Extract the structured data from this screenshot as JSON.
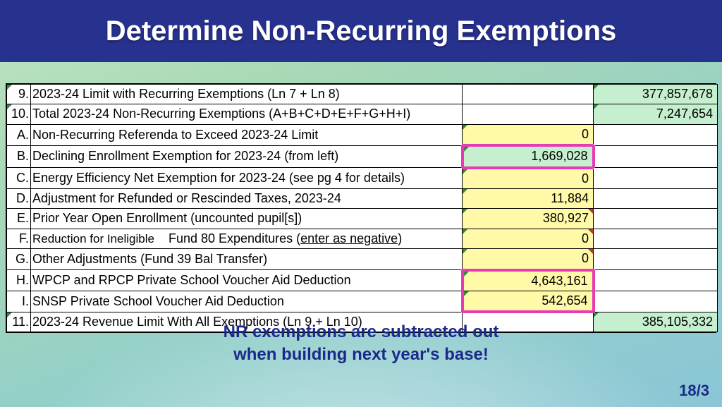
{
  "title": "Determine Non-Recurring Exemptions",
  "rows": {
    "r9": {
      "num": "9.",
      "desc": "2023-24 Limit with Recurring Exemptions  (Ln 7 + Ln 8)",
      "v2": "377,857,678"
    },
    "r10": {
      "num": "10.",
      "desc": "Total 2023-24 Non-Recurring Exemptions (A+B+C+D+E+F+G+H+I)",
      "v2": "7,247,654"
    },
    "rA": {
      "num": "A.",
      "desc": "Non-Recurring Referenda to Exceed 2023-24 Limit",
      "v1": "0"
    },
    "rB": {
      "num": "B.",
      "desc": "Declining Enrollment Exemption for 2023-24 (from left)",
      "v1": "1,669,028"
    },
    "rC": {
      "num": "C.",
      "desc": "Energy Efficiency Net Exemption for 2023-24 (see pg 4 for details)",
      "v1": "0"
    },
    "rD": {
      "num": "D.",
      "desc": "Adjustment for Refunded or Rescinded Taxes, 2023-24",
      "v1": "11,884"
    },
    "rE": {
      "num": "E.",
      "desc": "Prior Year Open Enrollment (uncounted pupil[s])",
      "v1": "380,927"
    },
    "rF": {
      "num": "F.",
      "d1": "Reduction for Ineligible",
      "d2": "Fund 80 Expenditures (",
      "d3": "enter as negative",
      "d4": ")",
      "v1": "0"
    },
    "rG": {
      "num": "G.",
      "desc": "Other Adjustments (Fund 39 Bal Transfer)",
      "v1": "0"
    },
    "rH": {
      "num": "H.",
      "desc": "WPCP and RPCP Private School Voucher Aid Deduction",
      "v1": "4,643,161"
    },
    "rI": {
      "num": "I.",
      "desc": "SNSP Private School Voucher Aid Deduction",
      "v1": "542,654"
    },
    "r11": {
      "num": "11.",
      "desc": "2023-24 Revenue Limit With All Exemptions  (Ln 9 + Ln 10)",
      "v2": "385,105,332"
    }
  },
  "caption_l1": "NR exemptions are subtracted out",
  "caption_l2": "when building next year's base!",
  "page": "18/3",
  "colors": {
    "title_bg": "#27328f",
    "yellow": "#fff9a8",
    "green": "#c5efce",
    "pink": "#e63bb4",
    "caption": "#1b2a8a"
  }
}
